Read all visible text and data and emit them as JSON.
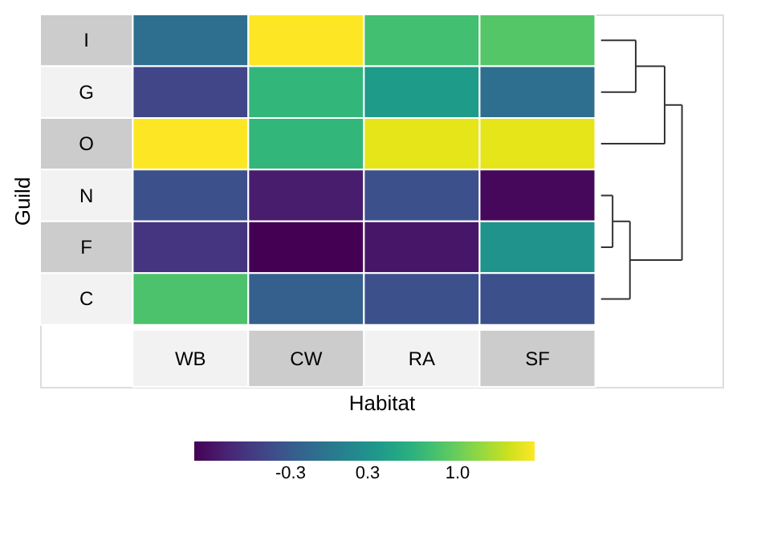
{
  "chart_data": {
    "type": "heatmap",
    "categories": [
      "WB",
      "CW",
      "RA",
      "SF"
    ],
    "y_categories": [
      "I",
      "G",
      "O",
      "N",
      "F",
      "C"
    ],
    "cells": [
      [
        -0.1,
        1.6,
        0.8,
        0.9
      ],
      [
        -0.5,
        0.7,
        0.4,
        -0.1
      ],
      [
        1.6,
        0.7,
        1.5,
        1.5
      ],
      [
        -0.4,
        -0.85,
        -0.4,
        -1.0
      ],
      [
        -0.65,
        -1.05,
        -0.9,
        0.3
      ],
      [
        0.85,
        -0.25,
        -0.4,
        -0.4
      ]
    ],
    "clim": [
      -1.05,
      1.6
    ],
    "cticks": [
      -0.3,
      0.3,
      {
        "value": 1,
        "label": "1.0"
      }
    ],
    "xlabel": "Habitat",
    "ylabel": "Guild"
  }
}
